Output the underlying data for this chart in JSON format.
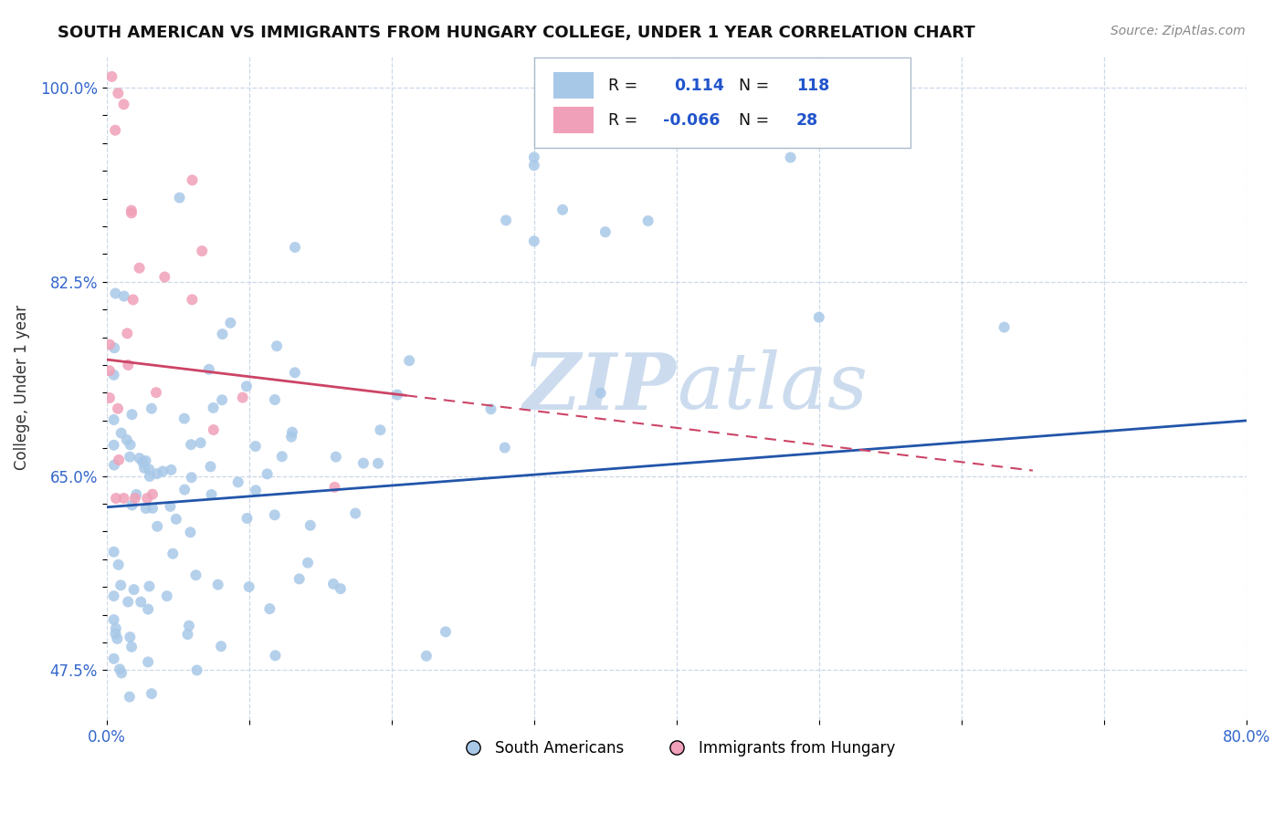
{
  "title": "SOUTH AMERICAN VS IMMIGRANTS FROM HUNGARY COLLEGE, UNDER 1 YEAR CORRELATION CHART",
  "source_text": "Source: ZipAtlas.com",
  "ylabel": "College, Under 1 year",
  "xmin": 0.0,
  "xmax": 0.8,
  "ymin": 0.43,
  "ymax": 1.03,
  "blue_color": "#a8c8e8",
  "pink_color": "#f0a0b8",
  "blue_line_color": "#2255aa",
  "pink_line_color": "#cc4466",
  "R_blue": 0.114,
  "N_blue": 118,
  "R_pink": -0.066,
  "N_pink": 28,
  "watermark": "ZIP atlas",
  "watermark_color": "#ccdcee",
  "background_color": "#ffffff",
  "grid_color": "#ccd8e8",
  "legend_label_blue": "South Americans",
  "legend_label_pink": "Immigrants from Hungary",
  "title_fontsize": 13,
  "axis_fontsize": 12,
  "source_fontsize": 10
}
